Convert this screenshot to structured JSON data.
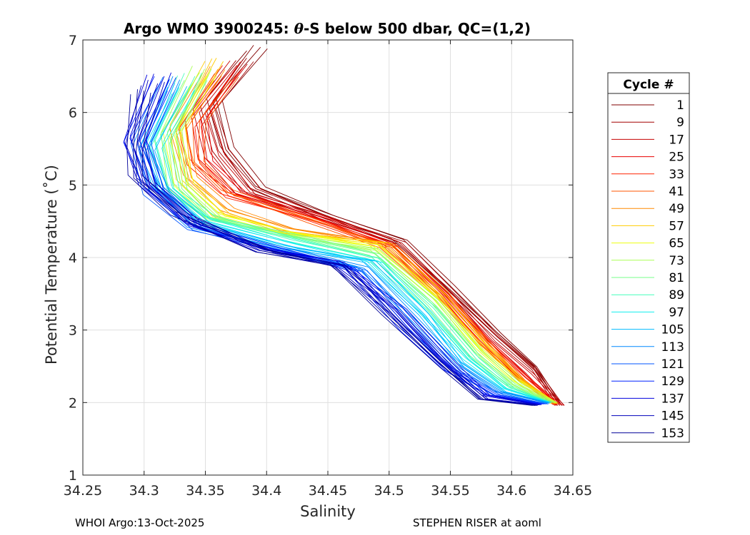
{
  "chart_data": {
    "type": "line",
    "title_prefix": "Argo WMO 3900245: ",
    "title_theta": "θ",
    "title_suffix": "-S below 500 dbar,  QC=(1,2)",
    "xlabel": "Salinity",
    "ylabel": "Potential Temperature (˚C)",
    "xlim": [
      34.25,
      34.65
    ],
    "ylim": [
      1,
      7
    ],
    "x_ticks": [
      "34.25",
      "34.3",
      "34.35",
      "34.4",
      "34.45",
      "34.5",
      "34.55",
      "34.6",
      "34.65"
    ],
    "y_ticks": [
      "1",
      "2",
      "3",
      "4",
      "5",
      "6",
      "7"
    ],
    "grid": true,
    "legend_position": "right",
    "legend_title": "Cycle #",
    "legend_entries": [
      {
        "label": "1",
        "color": "#800000"
      },
      {
        "label": "9",
        "color": "#a30000"
      },
      {
        "label": "17",
        "color": "#c60000"
      },
      {
        "label": "25",
        "color": "#e80000"
      },
      {
        "label": "33",
        "color": "#ff2200"
      },
      {
        "label": "41",
        "color": "#ff5500"
      },
      {
        "label": "49",
        "color": "#ff8800"
      },
      {
        "label": "57",
        "color": "#ffcc00"
      },
      {
        "label": "65",
        "color": "#eeff11"
      },
      {
        "label": "73",
        "color": "#aaff55"
      },
      {
        "label": "81",
        "color": "#77ff88"
      },
      {
        "label": "89",
        "color": "#44ffbb"
      },
      {
        "label": "97",
        "color": "#11eeee"
      },
      {
        "label": "105",
        "color": "#00bbff"
      },
      {
        "label": "113",
        "color": "#0088ff"
      },
      {
        "label": "121",
        "color": "#0055ff"
      },
      {
        "label": "129",
        "color": "#0022ff"
      },
      {
        "label": "137",
        "color": "#0000dd"
      },
      {
        "label": "145",
        "color": "#0000bb"
      },
      {
        "label": "153",
        "color": "#000099"
      }
    ],
    "series": [
      {
        "name": "1",
        "color": "#800000",
        "points": [
          [
            34.395,
            6.9
          ],
          [
            34.36,
            6.2
          ],
          [
            34.37,
            5.5
          ],
          [
            34.395,
            4.95
          ],
          [
            34.45,
            4.6
          ],
          [
            34.51,
            4.25
          ],
          [
            34.55,
            3.6
          ],
          [
            34.59,
            2.95
          ],
          [
            34.62,
            2.5
          ],
          [
            34.64,
            1.96
          ]
        ]
      },
      {
        "name": "9",
        "color": "#a30000",
        "points": [
          [
            34.385,
            6.75
          ],
          [
            34.355,
            6.05
          ],
          [
            34.365,
            5.45
          ],
          [
            34.39,
            4.95
          ],
          [
            34.45,
            4.55
          ],
          [
            34.51,
            4.2
          ],
          [
            34.55,
            3.55
          ],
          [
            34.59,
            2.9
          ],
          [
            34.62,
            2.45
          ],
          [
            34.64,
            1.96
          ]
        ]
      },
      {
        "name": "17",
        "color": "#c60000",
        "points": [
          [
            34.38,
            6.7
          ],
          [
            34.35,
            6.0
          ],
          [
            34.36,
            5.4
          ],
          [
            34.385,
            4.9
          ],
          [
            34.45,
            4.55
          ],
          [
            34.505,
            4.2
          ],
          [
            34.55,
            3.5
          ],
          [
            34.585,
            2.85
          ],
          [
            34.615,
            2.4
          ],
          [
            34.64,
            1.96
          ]
        ]
      },
      {
        "name": "25",
        "color": "#e80000",
        "points": [
          [
            34.375,
            6.6
          ],
          [
            34.345,
            5.9
          ],
          [
            34.35,
            5.35
          ],
          [
            34.38,
            4.9
          ],
          [
            34.45,
            4.5
          ],
          [
            34.505,
            4.15
          ],
          [
            34.545,
            3.5
          ],
          [
            34.58,
            2.85
          ],
          [
            34.61,
            2.35
          ],
          [
            34.638,
            1.97
          ]
        ]
      },
      {
        "name": "33",
        "color": "#ff2200",
        "points": [
          [
            34.37,
            6.5
          ],
          [
            34.34,
            5.8
          ],
          [
            34.345,
            5.3
          ],
          [
            34.37,
            4.85
          ],
          [
            34.44,
            4.5
          ],
          [
            34.505,
            4.15
          ],
          [
            34.545,
            3.5
          ],
          [
            34.58,
            2.8
          ],
          [
            34.61,
            2.35
          ],
          [
            34.638,
            1.97
          ]
        ]
      },
      {
        "name": "41",
        "color": "#ff5500",
        "points": [
          [
            34.37,
            6.45
          ],
          [
            34.345,
            5.9
          ],
          [
            34.345,
            5.35
          ],
          [
            34.37,
            4.9
          ],
          [
            34.44,
            4.5
          ],
          [
            34.5,
            4.15
          ],
          [
            34.545,
            3.45
          ],
          [
            34.58,
            2.8
          ],
          [
            34.61,
            2.3
          ],
          [
            34.636,
            1.98
          ]
        ]
      },
      {
        "name": "49",
        "color": "#ff8800",
        "points": [
          [
            34.36,
            6.6
          ],
          [
            34.33,
            5.8
          ],
          [
            34.34,
            5.1
          ],
          [
            34.37,
            4.65
          ],
          [
            34.42,
            4.4
          ],
          [
            34.5,
            4.2
          ],
          [
            34.545,
            3.5
          ],
          [
            34.58,
            2.8
          ],
          [
            34.61,
            2.3
          ],
          [
            34.636,
            1.98
          ]
        ]
      },
      {
        "name": "57",
        "color": "#ffcc00",
        "points": [
          [
            34.36,
            6.75
          ],
          [
            34.33,
            5.8
          ],
          [
            34.335,
            5.05
          ],
          [
            34.365,
            4.6
          ],
          [
            34.42,
            4.35
          ],
          [
            34.495,
            4.2
          ],
          [
            34.545,
            3.45
          ],
          [
            34.58,
            2.8
          ],
          [
            34.61,
            2.3
          ],
          [
            34.635,
            1.99
          ]
        ]
      },
      {
        "name": "65",
        "color": "#eeff11",
        "points": [
          [
            34.355,
            6.55
          ],
          [
            34.325,
            5.7
          ],
          [
            34.335,
            5.0
          ],
          [
            34.36,
            4.6
          ],
          [
            34.42,
            4.35
          ],
          [
            34.49,
            4.15
          ],
          [
            34.54,
            3.45
          ],
          [
            34.575,
            2.75
          ],
          [
            34.605,
            2.3
          ],
          [
            34.635,
            1.99
          ]
        ]
      },
      {
        "name": "73",
        "color": "#aaff55",
        "points": [
          [
            34.35,
            6.6
          ],
          [
            34.325,
            5.7
          ],
          [
            34.33,
            5.0
          ],
          [
            34.36,
            4.55
          ],
          [
            34.42,
            4.3
          ],
          [
            34.49,
            4.1
          ],
          [
            34.54,
            3.4
          ],
          [
            34.575,
            2.7
          ],
          [
            34.605,
            2.25
          ],
          [
            34.634,
            2.0
          ]
        ]
      },
      {
        "name": "81",
        "color": "#77ff88",
        "points": [
          [
            34.345,
            6.4
          ],
          [
            34.32,
            5.65
          ],
          [
            34.33,
            4.95
          ],
          [
            34.355,
            4.55
          ],
          [
            34.42,
            4.3
          ],
          [
            34.49,
            4.05
          ],
          [
            34.535,
            3.35
          ],
          [
            34.57,
            2.65
          ],
          [
            34.6,
            2.25
          ],
          [
            34.633,
            2.0
          ]
        ]
      },
      {
        "name": "89",
        "color": "#44ffbb",
        "points": [
          [
            34.34,
            6.5
          ],
          [
            34.315,
            5.6
          ],
          [
            34.325,
            4.95
          ],
          [
            34.355,
            4.55
          ],
          [
            34.42,
            4.25
          ],
          [
            34.49,
            4.0
          ],
          [
            34.535,
            3.3
          ],
          [
            34.57,
            2.6
          ],
          [
            34.6,
            2.2
          ],
          [
            34.632,
            2.0
          ]
        ]
      },
      {
        "name": "97",
        "color": "#11eeee",
        "points": [
          [
            34.335,
            6.3
          ],
          [
            34.31,
            5.55
          ],
          [
            34.32,
            4.95
          ],
          [
            34.35,
            4.5
          ],
          [
            34.42,
            4.2
          ],
          [
            34.49,
            3.95
          ],
          [
            34.53,
            3.25
          ],
          [
            34.565,
            2.6
          ],
          [
            34.595,
            2.2
          ],
          [
            34.632,
            2.0
          ]
        ]
      },
      {
        "name": "105",
        "color": "#00bbff",
        "points": [
          [
            34.33,
            6.4
          ],
          [
            34.305,
            5.5
          ],
          [
            34.315,
            4.95
          ],
          [
            34.35,
            4.45
          ],
          [
            34.42,
            4.15
          ],
          [
            34.485,
            3.95
          ],
          [
            34.53,
            3.2
          ],
          [
            34.56,
            2.55
          ],
          [
            34.595,
            2.15
          ],
          [
            34.63,
            2.0
          ]
        ]
      },
      {
        "name": "113",
        "color": "#0088ff",
        "points": [
          [
            34.325,
            6.5
          ],
          [
            34.3,
            5.5
          ],
          [
            34.315,
            4.9
          ],
          [
            34.345,
            4.45
          ],
          [
            34.4,
            4.2
          ],
          [
            34.48,
            3.85
          ],
          [
            34.525,
            3.1
          ],
          [
            34.56,
            2.5
          ],
          [
            34.59,
            2.15
          ],
          [
            34.628,
            1.99
          ]
        ]
      },
      {
        "name": "121",
        "color": "#0055ff",
        "points": [
          [
            34.32,
            6.3
          ],
          [
            34.3,
            5.55
          ],
          [
            34.31,
            4.9
          ],
          [
            34.345,
            4.4
          ],
          [
            34.4,
            4.15
          ],
          [
            34.48,
            3.8
          ],
          [
            34.52,
            3.05
          ],
          [
            34.555,
            2.45
          ],
          [
            34.59,
            2.1
          ],
          [
            34.627,
            1.98
          ]
        ]
      },
      {
        "name": "129",
        "color": "#0022ff",
        "points": [
          [
            34.32,
            6.45
          ],
          [
            34.295,
            5.6
          ],
          [
            34.31,
            5.0
          ],
          [
            34.345,
            4.45
          ],
          [
            34.4,
            4.15
          ],
          [
            34.47,
            3.85
          ],
          [
            34.515,
            3.0
          ],
          [
            34.55,
            2.45
          ],
          [
            34.585,
            2.1
          ],
          [
            34.625,
            1.98
          ]
        ]
      },
      {
        "name": "137",
        "color": "#0000dd",
        "points": [
          [
            34.315,
            6.5
          ],
          [
            34.295,
            5.65
          ],
          [
            34.305,
            5.0
          ],
          [
            34.34,
            4.45
          ],
          [
            34.4,
            4.1
          ],
          [
            34.46,
            3.95
          ],
          [
            34.51,
            3.3
          ],
          [
            34.55,
            2.55
          ],
          [
            34.58,
            2.1
          ],
          [
            34.624,
            1.97
          ]
        ]
      },
      {
        "name": "145",
        "color": "#0000bb",
        "points": [
          [
            34.31,
            6.4
          ],
          [
            34.295,
            5.6
          ],
          [
            34.305,
            5.05
          ],
          [
            34.34,
            4.5
          ],
          [
            34.4,
            4.1
          ],
          [
            34.46,
            3.9
          ],
          [
            34.505,
            3.25
          ],
          [
            34.545,
            2.55
          ],
          [
            34.58,
            2.05
          ],
          [
            34.622,
            1.97
          ]
        ]
      },
      {
        "name": "153",
        "color": "#000099",
        "points": [
          [
            34.3,
            6.3
          ],
          [
            34.295,
            5.5
          ],
          [
            34.295,
            5.1
          ],
          [
            34.33,
            4.6
          ],
          [
            34.4,
            4.1
          ],
          [
            34.46,
            3.9
          ],
          [
            34.5,
            3.2
          ],
          [
            34.545,
            2.5
          ],
          [
            34.575,
            2.05
          ],
          [
            34.62,
            1.96
          ]
        ]
      }
    ]
  },
  "footer": {
    "left": "WHOI Argo:13-Oct-2025",
    "right": "STEPHEN RISER at aoml"
  }
}
